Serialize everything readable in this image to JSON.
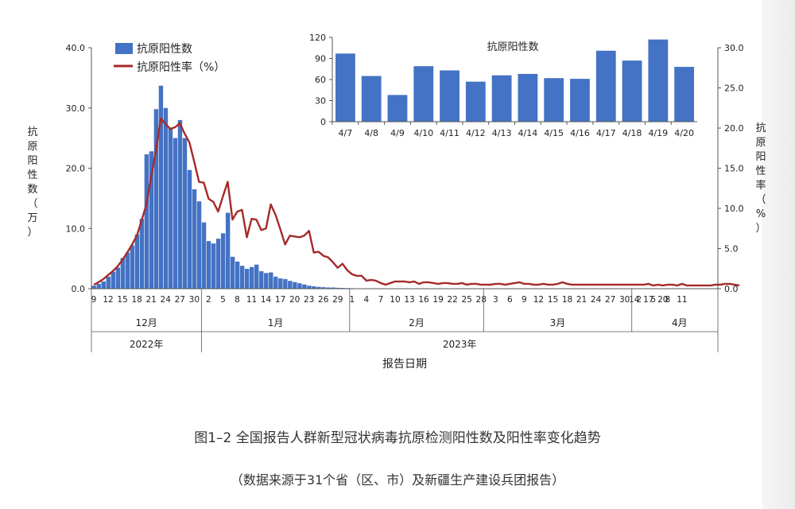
{
  "colors": {
    "bar": "#4472c4",
    "line": "#a52a2a",
    "axis": "#555555",
    "background": "#ffffff"
  },
  "caption": {
    "title": "图1–2 全国报告人群新型冠状病毒抗原检测阳性数及阳性率变化趋势",
    "source": "（数据来源于31个省（区、市）及新疆生产建设兵团报告）"
  },
  "chart_data": [
    {
      "type": "bar+line",
      "title": "",
      "xlabel": "报告日期",
      "ylabel_left": "抗原阳性数（万）",
      "ylabel_right": "抗原阳性率（%）",
      "ylim_left": [
        0,
        40
      ],
      "ylim_right": [
        0,
        30
      ],
      "yticks_left": [
        "0.0",
        "10.0",
        "20.0",
        "30.0",
        "40.0"
      ],
      "yticks_right": [
        "0.0",
        "5.0",
        "10.0",
        "15.0",
        "20.0",
        "25.0",
        "30.0"
      ],
      "legend": {
        "placement": "top-left",
        "entries": [
          "抗原阳性数",
          "抗原阳性率（%）"
        ]
      },
      "x_tick_labels": [
        "9",
        "12",
        "15",
        "18",
        "21",
        "24",
        "27",
        "30",
        "2",
        "5",
        "8",
        "11",
        "14",
        "17",
        "20",
        "23",
        "26",
        "29",
        "1",
        "4",
        "7",
        "10",
        "13",
        "16",
        "19",
        "22",
        "25",
        "28",
        "3",
        "6",
        "9",
        "12",
        "15",
        "18",
        "21",
        "24",
        "27",
        "30",
        "2",
        "5",
        "8",
        "11",
        "14",
        "17",
        "20"
      ],
      "months": [
        "12月",
        "1月",
        "2月",
        "3月",
        "4月"
      ],
      "years": [
        "2022年",
        "2023年"
      ],
      "series": [
        {
          "name": "抗原阳性数",
          "kind": "bar",
          "axis": "left",
          "start_date": "12/9",
          "values": [
            0.5,
            0.8,
            1.2,
            2.0,
            2.8,
            3.5,
            5.1,
            6.0,
            7.2,
            9.0,
            11.6,
            22.3,
            22.8,
            29.8,
            33.7,
            30.0,
            26.6,
            25.0,
            28.0,
            25.0,
            19.7,
            16.5,
            14.5,
            11.0,
            7.9,
            7.5,
            8.3,
            9.2,
            12.6,
            5.3,
            4.5,
            3.8,
            3.3,
            3.6,
            4.0,
            2.9,
            2.6,
            2.7,
            2.0,
            1.7,
            1.6,
            1.3,
            1.1,
            0.9,
            0.7,
            0.5,
            0.4,
            0.3,
            0.25,
            0.2,
            0.2,
            0.15,
            0.12,
            0.1,
            0.08,
            0.06,
            0.05,
            0.05,
            0.04,
            0.04,
            0.03,
            0.03,
            0.03,
            0.03,
            0.03,
            0.03,
            0.02,
            0.02,
            0.02,
            0.02,
            0.02,
            0.02,
            0.02,
            0.02,
            0.02,
            0.02,
            0.02,
            0.02,
            0.02,
            0.02,
            0.02,
            0.02,
            0.02,
            0.02,
            0.02,
            0.02,
            0.02,
            0.02,
            0.02,
            0.02,
            0.02,
            0.02,
            0.02,
            0.02,
            0.02,
            0.02,
            0.02,
            0.02,
            0.02,
            0.02,
            0.02,
            0.02,
            0.02,
            0.02,
            0.02,
            0.02,
            0.02,
            0.02,
            0.02,
            0.02,
            0.02,
            0.02,
            0.02,
            0.02,
            0.02,
            0.02,
            0.02,
            0.02,
            0.02,
            0.02,
            0.02,
            0.02,
            0.02,
            0.02,
            0.02,
            0.02,
            0.02,
            0.02,
            0.02,
            0.02,
            0.02
          ]
        },
        {
          "name": "抗原阳性率（%）",
          "kind": "line",
          "axis": "right",
          "start_date": "12/9",
          "values": [
            0.5,
            0.8,
            1.2,
            1.7,
            2.2,
            2.8,
            3.6,
            4.5,
            5.5,
            6.6,
            8.5,
            10.5,
            14.0,
            17.2,
            21.2,
            20.5,
            19.9,
            20.1,
            20.6,
            19.3,
            18.2,
            15.8,
            13.3,
            13.2,
            11.2,
            10.8,
            9.6,
            11.5,
            13.3,
            8.6,
            9.6,
            9.8,
            6.4,
            8.7,
            8.6,
            7.3,
            7.5,
            10.5,
            9.2,
            7.4,
            5.5,
            6.6,
            6.5,
            6.4,
            6.6,
            7.2,
            4.5,
            4.6,
            4.1,
            3.9,
            3.3,
            2.6,
            3.1,
            2.3,
            1.8,
            1.6,
            1.6,
            1.0,
            1.1,
            1.0,
            0.7,
            0.5,
            0.7,
            0.9,
            0.9,
            0.9,
            0.8,
            0.9,
            0.6,
            0.8,
            0.8,
            0.7,
            0.6,
            0.7,
            0.7,
            0.6,
            0.6,
            0.7,
            0.5,
            0.6,
            0.6,
            0.5,
            0.5,
            0.5,
            0.6,
            0.6,
            0.5,
            0.6,
            0.7,
            0.8,
            0.6,
            0.6,
            0.5,
            0.5,
            0.6,
            0.5,
            0.5,
            0.6,
            0.8,
            0.6,
            0.5,
            0.5,
            0.5,
            0.5,
            0.5,
            0.5,
            0.5,
            0.5,
            0.5,
            0.5,
            0.5,
            0.5,
            0.5,
            0.5,
            0.5,
            0.5,
            0.6,
            0.4,
            0.5,
            0.4,
            0.5,
            0.5,
            0.4,
            0.6,
            0.4,
            0.4,
            0.4,
            0.4,
            0.4,
            0.4,
            0.5,
            0.5,
            0.6,
            0.6,
            0.5,
            0.4
          ]
        }
      ]
    },
    {
      "type": "bar",
      "title": "抗原阳性数",
      "categories": [
        "4/7",
        "4/8",
        "4/9",
        "4/10",
        "4/11",
        "4/12",
        "4/13",
        "4/14",
        "4/15",
        "4/16",
        "4/17",
        "4/18",
        "4/19",
        "4/20"
      ],
      "values": [
        97,
        65,
        38,
        79,
        73,
        57,
        66,
        68,
        62,
        61,
        101,
        87,
        117,
        78
      ],
      "ylim": [
        0,
        120
      ],
      "yticks": [
        "0",
        "30",
        "60",
        "90",
        "120"
      ]
    }
  ]
}
